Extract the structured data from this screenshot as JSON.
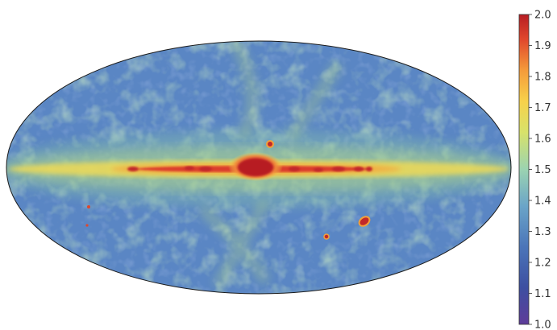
{
  "map": {
    "projection": "mollweide",
    "features": [
      "galactic-plane-band",
      "galactic-center-bulge",
      "diagonal-loop-arcs",
      "large-magellanic-cloud",
      "small-magellanic-cloud",
      "point-sources"
    ],
    "palette": [
      "#5e3c99",
      "#3d4fa1",
      "#4b75b9",
      "#6aa4c8",
      "#9bd3b1",
      "#d8e26a",
      "#f7d14a",
      "#f59b3a",
      "#e0472c",
      "#b71d24"
    ]
  },
  "colorbar": {
    "min": 1.0,
    "max": 2.0,
    "ticks": [
      "2.0",
      "1.9",
      "1.8",
      "1.7",
      "1.6",
      "1.5",
      "1.4",
      "1.3",
      "1.2",
      "1.1",
      "1.0"
    ]
  }
}
